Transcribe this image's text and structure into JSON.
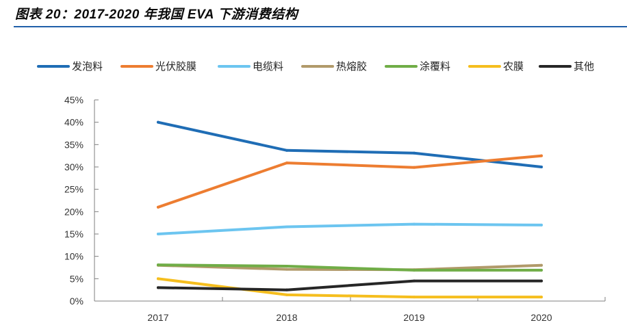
{
  "header": {
    "title": "图表 20：2017-2020 年我国 EVA 下游消费结构"
  },
  "colors": {
    "title_rule": "#1f5fa8",
    "axis": "#7f7f7f"
  },
  "chart_data": {
    "type": "line",
    "title": "",
    "xlabel": "",
    "ylabel": "",
    "categories": [
      "2017",
      "2018",
      "2019",
      "2020"
    ],
    "y_ticks": [
      "0%",
      "5%",
      "10%",
      "15%",
      "20%",
      "25%",
      "30%",
      "35%",
      "40%",
      "45%"
    ],
    "ylim": [
      0,
      45
    ],
    "grid": false,
    "legend_position": "top",
    "series": [
      {
        "name": "发泡料",
        "color": "#1f6db5",
        "values": [
          40.0,
          33.7,
          33.1,
          30.0
        ]
      },
      {
        "name": "光伏胶膜",
        "color": "#ed7d31",
        "values": [
          21.0,
          30.9,
          29.9,
          32.5
        ]
      },
      {
        "name": "电缆料",
        "color": "#6cc5f0",
        "values": [
          15.0,
          16.6,
          17.2,
          17.0
        ]
      },
      {
        "name": "热熔胶",
        "color": "#b19a6a",
        "values": [
          8.0,
          7.1,
          7.0,
          8.0
        ]
      },
      {
        "name": "涂覆料",
        "color": "#70ad47",
        "values": [
          8.1,
          7.8,
          6.9,
          6.9
        ]
      },
      {
        "name": "农膜",
        "color": "#f5be1e",
        "values": [
          5.0,
          1.4,
          0.9,
          0.9
        ]
      },
      {
        "name": "其他",
        "color": "#262626",
        "values": [
          3.0,
          2.5,
          4.5,
          4.5
        ]
      }
    ]
  }
}
